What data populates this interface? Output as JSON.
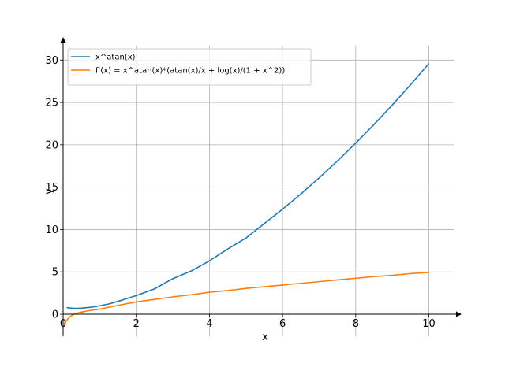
{
  "chart_data": {
    "type": "line",
    "xlabel": "x",
    "ylabel": "y",
    "xlim": [
      0,
      10.7
    ],
    "ylim": [
      -2.6,
      31.7
    ],
    "x_ticks": [
      0,
      2,
      4,
      6,
      8,
      10
    ],
    "y_ticks": [
      0,
      5,
      10,
      15,
      20,
      25,
      30
    ],
    "grid": true,
    "legend_position": "top-left",
    "series": [
      {
        "name": "x^atan(x)",
        "color": "#1f77b4",
        "points": [
          [
            0.1,
            0.79
          ],
          [
            0.2,
            0.73
          ],
          [
            0.3,
            0.7
          ],
          [
            0.4,
            0.7
          ],
          [
            0.5,
            0.72
          ],
          [
            0.6,
            0.76
          ],
          [
            0.7,
            0.8
          ],
          [
            0.8,
            0.85
          ],
          [
            0.9,
            0.91
          ],
          [
            1.0,
            1.0
          ],
          [
            1.25,
            1.21
          ],
          [
            1.5,
            1.52
          ],
          [
            1.75,
            1.86
          ],
          [
            2.0,
            2.2
          ],
          [
            2.5,
            3.0
          ],
          [
            3.0,
            4.2
          ],
          [
            3.5,
            5.1
          ],
          [
            4.0,
            6.3
          ],
          [
            4.5,
            7.7
          ],
          [
            5.0,
            9.0
          ],
          [
            5.5,
            10.7
          ],
          [
            6.0,
            12.4
          ],
          [
            6.5,
            14.2
          ],
          [
            7.0,
            16.1
          ],
          [
            7.5,
            18.1
          ],
          [
            8.0,
            20.2
          ],
          [
            8.5,
            22.4
          ],
          [
            9.0,
            24.7
          ],
          [
            9.5,
            27.1
          ],
          [
            10.0,
            29.6
          ]
        ]
      },
      {
        "name": "f'(x) = x^atan(x)*(atan(x)/x + log(x)/(1 + x^2))",
        "color": "#ff7f0e",
        "points": [
          [
            0.02,
            -1.2
          ],
          [
            0.05,
            -1.0
          ],
          [
            0.1,
            -0.7
          ],
          [
            0.15,
            -0.45
          ],
          [
            0.2,
            -0.25
          ],
          [
            0.3,
            0.0
          ],
          [
            0.4,
            0.15
          ],
          [
            0.5,
            0.25
          ],
          [
            0.7,
            0.42
          ],
          [
            1.0,
            0.6
          ],
          [
            1.5,
            1.05
          ],
          [
            2.0,
            1.45
          ],
          [
            2.5,
            1.75
          ],
          [
            3.0,
            2.05
          ],
          [
            3.5,
            2.3
          ],
          [
            4.0,
            2.6
          ],
          [
            4.5,
            2.8
          ],
          [
            5.0,
            3.05
          ],
          [
            5.5,
            3.25
          ],
          [
            6.0,
            3.45
          ],
          [
            6.5,
            3.65
          ],
          [
            7.0,
            3.85
          ],
          [
            7.5,
            4.05
          ],
          [
            8.0,
            4.25
          ],
          [
            8.5,
            4.45
          ],
          [
            9.0,
            4.6
          ],
          [
            9.5,
            4.8
          ],
          [
            10.0,
            4.95
          ]
        ]
      }
    ]
  }
}
